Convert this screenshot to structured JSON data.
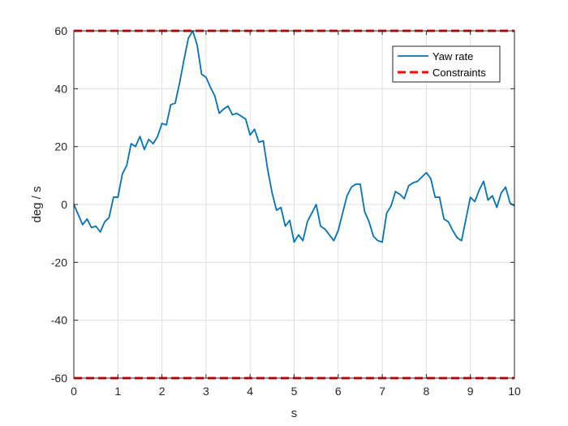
{
  "chart_data": {
    "type": "line",
    "title": "",
    "xlabel": "s",
    "ylabel": "deg / s",
    "xlim": [
      0,
      10
    ],
    "ylim": [
      -60,
      60
    ],
    "xticks": [
      0,
      1,
      2,
      3,
      4,
      5,
      6,
      7,
      8,
      9,
      10
    ],
    "yticks": [
      -60,
      -40,
      -20,
      0,
      20,
      40,
      60
    ],
    "xtick_labels": [
      "0",
      "1",
      "2",
      "3",
      "4",
      "5",
      "6",
      "7",
      "8",
      "9",
      "10"
    ],
    "ytick_labels": [
      "-60",
      "-40",
      "-20",
      "0",
      "20",
      "40",
      "60"
    ],
    "grid": true,
    "legend_position": "top-right",
    "series": [
      {
        "name": "Yaw rate",
        "color": "#0072BD",
        "style": "solid",
        "x": [
          0,
          0.1,
          0.2,
          0.3,
          0.4,
          0.5,
          0.6,
          0.7,
          0.8,
          0.9,
          1.0,
          1.1,
          1.2,
          1.3,
          1.4,
          1.5,
          1.6,
          1.7,
          1.8,
          1.9,
          2.0,
          2.1,
          2.2,
          2.3,
          2.4,
          2.5,
          2.6,
          2.7,
          2.8,
          2.9,
          3.0,
          3.1,
          3.2,
          3.3,
          3.4,
          3.5,
          3.6,
          3.7,
          3.8,
          3.9,
          4.0,
          4.1,
          4.2,
          4.3,
          4.4,
          4.5,
          4.6,
          4.7,
          4.8,
          4.9,
          5.0,
          5.1,
          5.2,
          5.3,
          5.4,
          5.5,
          5.6,
          5.7,
          5.8,
          5.9,
          6.0,
          6.1,
          6.2,
          6.3,
          6.4,
          6.5,
          6.6,
          6.7,
          6.8,
          6.9,
          7.0,
          7.1,
          7.2,
          7.3,
          7.4,
          7.5,
          7.6,
          7.7,
          7.8,
          7.9,
          8.0,
          8.1,
          8.2,
          8.3,
          8.4,
          8.5,
          8.6,
          8.7,
          8.8,
          8.9,
          9.0,
          9.1,
          9.2,
          9.3,
          9.4,
          9.5,
          9.6,
          9.7,
          9.8,
          9.9,
          10.0
        ],
        "values": [
          0,
          -3.5,
          -7,
          -5,
          -8,
          -7.5,
          -9.5,
          -6,
          -4.5,
          2.5,
          2.5,
          10.5,
          13.5,
          21,
          20,
          23.5,
          19,
          22.5,
          21,
          23.5,
          28,
          27.5,
          34.5,
          35,
          42,
          50,
          57.5,
          60,
          55,
          45,
          44,
          40.5,
          37.5,
          31.5,
          33,
          34,
          31,
          31.5,
          30.5,
          29.5,
          24,
          26,
          21.5,
          22,
          12,
          4,
          -2,
          -1,
          -7.5,
          -5.5,
          -13,
          -10.5,
          -12.5,
          -6,
          -3,
          0,
          -7.5,
          -8.5,
          -10.5,
          -12.5,
          -9,
          -3,
          3,
          6,
          7,
          7,
          -2.5,
          -6,
          -11,
          -12.5,
          -13,
          -3,
          -0.5,
          4.5,
          3.5,
          2,
          6.5,
          7.5,
          8,
          9.5,
          11,
          9,
          2.5,
          2.5,
          -5,
          -6,
          -9,
          -11.5,
          -12.5,
          -5,
          2.5,
          1,
          5,
          8,
          1.5,
          3,
          -1,
          4,
          6,
          0.5,
          -0.5
        ]
      },
      {
        "name": "Constraints",
        "color": "#FF0000",
        "style": "dashed",
        "x": [
          0,
          10
        ],
        "values": [
          60,
          60
        ]
      },
      {
        "name": "",
        "color": "#FF0000",
        "style": "dashed",
        "x": [
          0,
          10
        ],
        "values": [
          -60,
          -60
        ]
      }
    ]
  }
}
